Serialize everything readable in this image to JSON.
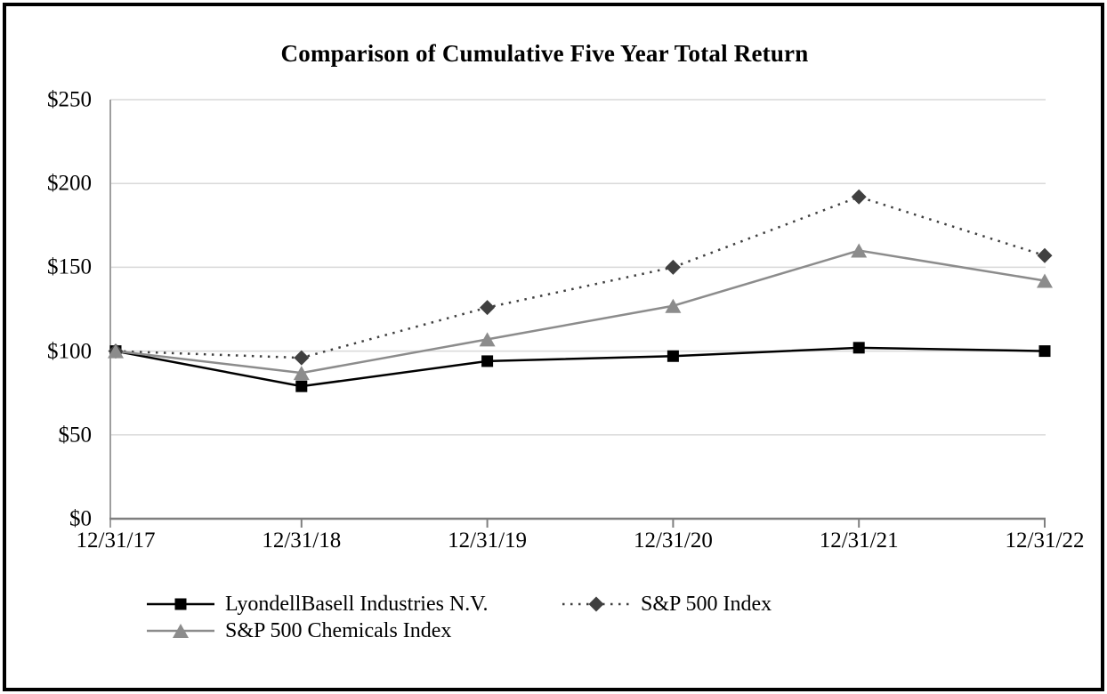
{
  "chart_data": {
    "type": "line",
    "title": "Comparison of Cumulative Five Year Total Return",
    "categories": [
      "12/31/17",
      "12/31/18",
      "12/31/19",
      "12/31/20",
      "12/31/21",
      "12/31/22"
    ],
    "series": [
      {
        "name": "LyondellBasell Industries N.V.",
        "values": [
          100,
          79,
          94,
          97,
          102,
          100
        ],
        "color": "#000000",
        "line_style": "solid",
        "marker": "square"
      },
      {
        "name": "S&P 500 Index",
        "values": [
          100,
          96,
          126,
          150,
          192,
          157
        ],
        "color": "#404040",
        "line_style": "dotted",
        "marker": "diamond"
      },
      {
        "name": "S&P 500 Chemicals Index",
        "values": [
          100,
          87,
          107,
          127,
          160,
          142
        ],
        "color": "#8C8C8C",
        "line_style": "solid",
        "marker": "triangle"
      }
    ],
    "y_ticks": [
      "$0",
      "$50",
      "$100",
      "$150",
      "$200",
      "$250"
    ],
    "y_values": [
      0,
      50,
      100,
      150,
      200,
      250
    ],
    "ylim": [
      0,
      250
    ],
    "xlabel": "",
    "ylabel": "",
    "grid": "horizontal",
    "legend_position": "bottom",
    "colors": {
      "gridline": "#D9D9D9",
      "x_axis": "#7F7F7F",
      "y_axis": "#9E9E9E",
      "text": "#000000",
      "background": "#FFFFFF",
      "frame_border": "#000000"
    }
  }
}
